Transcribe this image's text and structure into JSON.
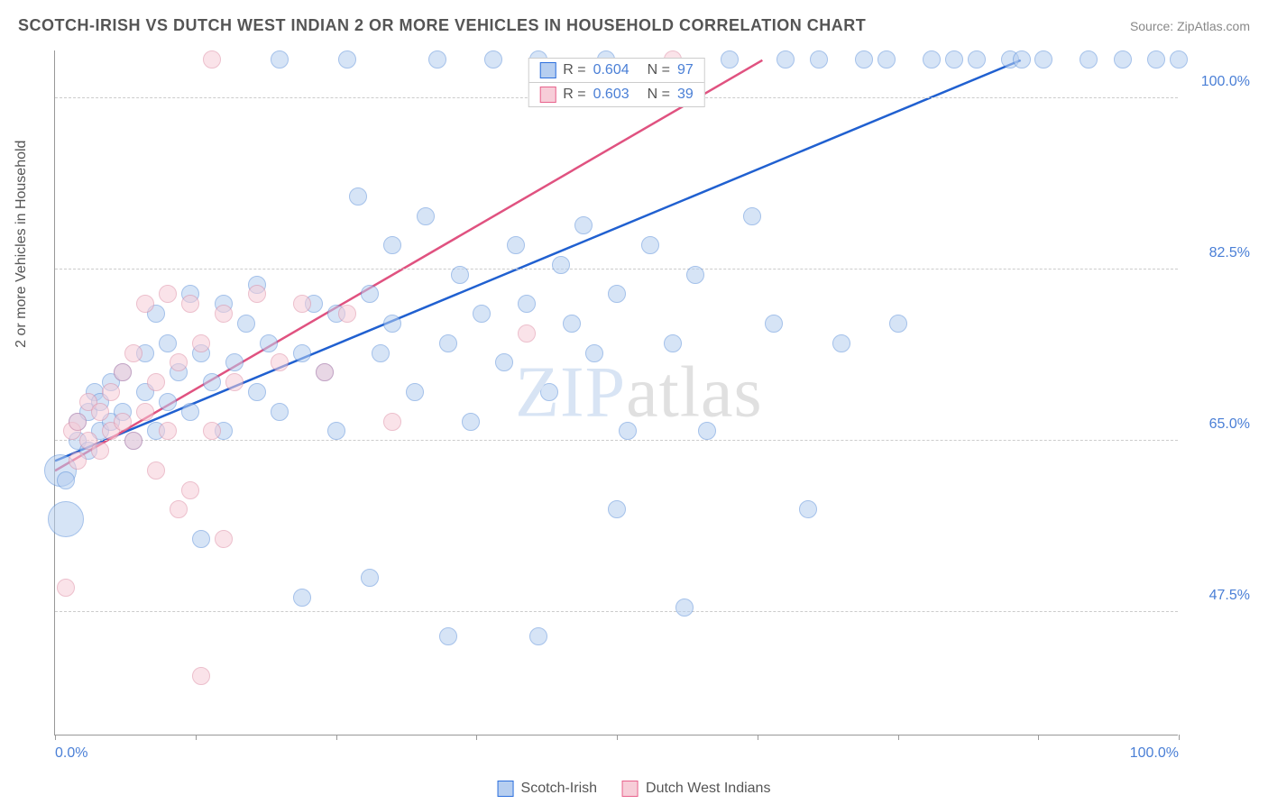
{
  "title": "SCOTCH-IRISH VS DUTCH WEST INDIAN 2 OR MORE VEHICLES IN HOUSEHOLD CORRELATION CHART",
  "source": "Source: ZipAtlas.com",
  "ylabel": "2 or more Vehicles in Household",
  "watermark": {
    "part1": "ZIP",
    "part2": "atlas"
  },
  "legend_top": [
    {
      "swatch_fill": "#b6cef0",
      "swatch_stroke": "#2c6fdd",
      "r_label": "R =",
      "r_value": "0.604",
      "n_label": "N =",
      "n_value": "97"
    },
    {
      "swatch_fill": "#f7cdd8",
      "swatch_stroke": "#e8628c",
      "r_label": "R =",
      "r_value": "0.603",
      "n_label": "N =",
      "n_value": "39"
    }
  ],
  "legend_bottom": [
    {
      "swatch_fill": "#b6cef0",
      "swatch_stroke": "#2c6fdd",
      "label": "Scotch-Irish"
    },
    {
      "swatch_fill": "#f7cdd8",
      "swatch_stroke": "#e8628c",
      "label": "Dutch West Indians"
    }
  ],
  "chart": {
    "type": "scatter",
    "xlim": [
      0,
      100
    ],
    "ylim": [
      35,
      105
    ],
    "xticks": [
      0,
      12.5,
      25,
      37.5,
      50,
      62.5,
      75,
      87.5,
      100
    ],
    "xtick_labels": {
      "0": "0.0%",
      "100": "100.0%"
    },
    "yticks": [
      47.5,
      65.0,
      82.5,
      100.0
    ],
    "ytick_labels": [
      "47.5%",
      "65.0%",
      "82.5%",
      "100.0%"
    ],
    "background_color": "#ffffff",
    "grid_color": "#cccccc",
    "series": [
      {
        "name": "Scotch-Irish",
        "fill": "#b6cef0",
        "stroke": "#5a8fd9",
        "fill_opacity": 0.55,
        "points": [
          [
            0.5,
            62,
            18
          ],
          [
            1,
            57,
            20
          ],
          [
            1,
            61,
            10
          ],
          [
            2,
            67,
            10
          ],
          [
            2,
            65,
            10
          ],
          [
            3,
            68,
            10
          ],
          [
            3,
            64,
            10
          ],
          [
            3.5,
            70,
            10
          ],
          [
            4,
            66,
            10
          ],
          [
            4,
            69,
            10
          ],
          [
            5,
            67,
            10
          ],
          [
            5,
            71,
            10
          ],
          [
            6,
            68,
            10
          ],
          [
            6,
            72,
            10
          ],
          [
            7,
            65,
            10
          ],
          [
            8,
            70,
            10
          ],
          [
            8,
            74,
            10
          ],
          [
            9,
            66,
            10
          ],
          [
            9,
            78,
            10
          ],
          [
            10,
            69,
            10
          ],
          [
            10,
            75,
            10
          ],
          [
            11,
            72,
            10
          ],
          [
            12,
            68,
            10
          ],
          [
            12,
            80,
            10
          ],
          [
            13,
            74,
            10
          ],
          [
            13,
            55,
            10
          ],
          [
            14,
            71,
            10
          ],
          [
            15,
            79,
            10
          ],
          [
            15,
            66,
            10
          ],
          [
            16,
            73,
            10
          ],
          [
            17,
            77,
            10
          ],
          [
            18,
            70,
            10
          ],
          [
            18,
            81,
            10
          ],
          [
            19,
            75,
            10
          ],
          [
            20,
            68,
            10
          ],
          [
            20,
            104,
            10
          ],
          [
            22,
            74,
            10
          ],
          [
            22,
            49,
            10
          ],
          [
            23,
            79,
            10
          ],
          [
            24,
            72,
            10
          ],
          [
            25,
            78,
            10
          ],
          [
            25,
            66,
            10
          ],
          [
            26,
            104,
            10
          ],
          [
            27,
            90,
            10
          ],
          [
            28,
            80,
            10
          ],
          [
            28,
            51,
            10
          ],
          [
            29,
            74,
            10
          ],
          [
            30,
            77,
            10
          ],
          [
            30,
            85,
            10
          ],
          [
            32,
            70,
            10
          ],
          [
            33,
            88,
            10
          ],
          [
            34,
            104,
            10
          ],
          [
            35,
            75,
            10
          ],
          [
            35,
            45,
            10
          ],
          [
            36,
            82,
            10
          ],
          [
            37,
            67,
            10
          ],
          [
            38,
            78,
            10
          ],
          [
            39,
            104,
            10
          ],
          [
            40,
            73,
            10
          ],
          [
            41,
            85,
            10
          ],
          [
            42,
            79,
            10
          ],
          [
            43,
            104,
            10
          ],
          [
            43,
            45,
            10
          ],
          [
            44,
            70,
            10
          ],
          [
            45,
            83,
            10
          ],
          [
            46,
            77,
            10
          ],
          [
            47,
            87,
            10
          ],
          [
            48,
            74,
            10
          ],
          [
            49,
            104,
            10
          ],
          [
            50,
            80,
            10
          ],
          [
            50,
            58,
            10
          ],
          [
            51,
            66,
            10
          ],
          [
            53,
            85,
            10
          ],
          [
            55,
            75,
            10
          ],
          [
            56,
            48,
            10
          ],
          [
            57,
            82,
            10
          ],
          [
            58,
            66,
            10
          ],
          [
            60,
            104,
            10
          ],
          [
            62,
            88,
            10
          ],
          [
            64,
            77,
            10
          ],
          [
            65,
            104,
            10
          ],
          [
            67,
            58,
            10
          ],
          [
            68,
            104,
            10
          ],
          [
            70,
            75,
            10
          ],
          [
            72,
            104,
            10
          ],
          [
            74,
            104,
            10
          ],
          [
            75,
            77,
            10
          ],
          [
            78,
            104,
            10
          ],
          [
            80,
            104,
            10
          ],
          [
            82,
            104,
            10
          ],
          [
            85,
            104,
            10
          ],
          [
            86,
            104,
            10
          ],
          [
            88,
            104,
            10
          ],
          [
            92,
            104,
            10
          ],
          [
            95,
            104,
            10
          ],
          [
            98,
            104,
            10
          ],
          [
            100,
            104,
            10
          ]
        ],
        "trend": {
          "x1": 0,
          "y1": 63,
          "x2": 86,
          "y2": 104,
          "color": "#2060d0",
          "width": 2.5
        }
      },
      {
        "name": "Dutch West Indians",
        "fill": "#f7cdd8",
        "stroke": "#de8ca4",
        "fill_opacity": 0.55,
        "points": [
          [
            1,
            50,
            10
          ],
          [
            1.5,
            66,
            10
          ],
          [
            2,
            63,
            10
          ],
          [
            2,
            67,
            10
          ],
          [
            3,
            65,
            10
          ],
          [
            3,
            69,
            10
          ],
          [
            4,
            64,
            10
          ],
          [
            4,
            68,
            10
          ],
          [
            5,
            66,
            10
          ],
          [
            5,
            70,
            10
          ],
          [
            6,
            67,
            10
          ],
          [
            6,
            72,
            10
          ],
          [
            7,
            65,
            10
          ],
          [
            7,
            74,
            10
          ],
          [
            8,
            68,
            10
          ],
          [
            8,
            79,
            10
          ],
          [
            9,
            71,
            10
          ],
          [
            9,
            62,
            10
          ],
          [
            10,
            80,
            10
          ],
          [
            10,
            66,
            10
          ],
          [
            11,
            73,
            10
          ],
          [
            11,
            58,
            10
          ],
          [
            12,
            79,
            10
          ],
          [
            12,
            60,
            10
          ],
          [
            13,
            75,
            10
          ],
          [
            14,
            104,
            10
          ],
          [
            14,
            66,
            10
          ],
          [
            15,
            78,
            10
          ],
          [
            15,
            55,
            10
          ],
          [
            16,
            71,
            10
          ],
          [
            18,
            80,
            10
          ],
          [
            20,
            73,
            10
          ],
          [
            22,
            79,
            10
          ],
          [
            24,
            72,
            10
          ],
          [
            26,
            78,
            10
          ],
          [
            30,
            67,
            10
          ],
          [
            42,
            76,
            10
          ],
          [
            55,
            104,
            10
          ],
          [
            13,
            41,
            10
          ]
        ],
        "trend": {
          "x1": 0,
          "y1": 62,
          "x2": 63,
          "y2": 104,
          "color": "#e05280",
          "width": 2.5
        }
      }
    ]
  }
}
